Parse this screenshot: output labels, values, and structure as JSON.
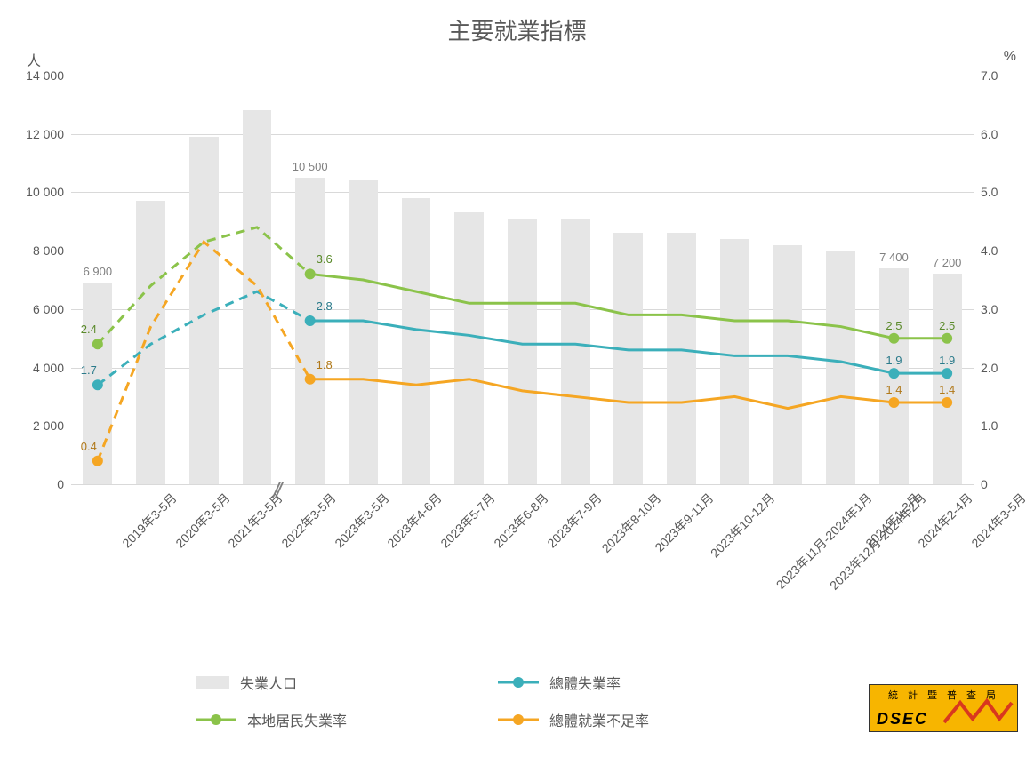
{
  "chart": {
    "title": "主要就業指標",
    "title_fontsize": 26,
    "title_color": "#595959",
    "background_color": "#ffffff",
    "grid_color": "#d9d9d9",
    "y_left": {
      "label": "人",
      "min": 0,
      "max": 14000,
      "step": 2000,
      "ticks": [
        "0",
        "2 000",
        "4 000",
        "6 000",
        "8 000",
        "10 000",
        "12 000",
        "14 000"
      ]
    },
    "y_right": {
      "label": "%",
      "min": 0,
      "max": 7.0,
      "step": 1.0,
      "ticks": [
        "0",
        "1.0",
        "2.0",
        "3.0",
        "4.0",
        "5.0",
        "6.0",
        "7.0"
      ]
    },
    "categories": [
      "2019年3-5月",
      "2020年3-5月",
      "2021年3-5月",
      "2022年3-5月",
      "2023年3-5月",
      "2023年4-6月",
      "2023年5-7月",
      "2023年6-8月",
      "2023年7-9月",
      "2023年8-10月",
      "2023年9-11月",
      "2023年10-12月",
      "2023年11月-2024年1月",
      "2023年12月-2024年2月",
      "2024年1-3月",
      "2024年2-4月",
      "2024年3-5月"
    ],
    "axis_break_after_index": 3,
    "bars": {
      "name": "失業人口",
      "color": "#e6e6e6",
      "width_ratio": 0.55,
      "values": [
        6900,
        9700,
        11900,
        12800,
        10500,
        10400,
        9800,
        9300,
        9100,
        9100,
        8600,
        8600,
        8400,
        8200,
        8000,
        7400,
        7200
      ],
      "labels": {
        "0": "6 900",
        "4": "10 500",
        "15": "7 400",
        "16": "7 200"
      }
    },
    "lines": [
      {
        "name": "總體失業率",
        "color": "#3bafba",
        "width": 3,
        "marker": "circle",
        "marker_size": 6,
        "marker_indices": [
          0,
          4,
          15,
          16
        ],
        "dash_until_index": 4,
        "values": [
          1.7,
          2.4,
          2.9,
          3.3,
          2.8,
          2.8,
          2.65,
          2.55,
          2.4,
          2.4,
          2.3,
          2.3,
          2.2,
          2.2,
          2.1,
          1.9,
          1.9
        ],
        "labels": {
          "0": "1.7",
          "4": "2.8",
          "15": "1.9",
          "16": "1.9"
        },
        "label_color": "#2a7a8a"
      },
      {
        "name": "本地居民失業率",
        "color": "#8bc34a",
        "width": 3,
        "marker": "circle",
        "marker_size": 6,
        "marker_indices": [
          0,
          4,
          15,
          16
        ],
        "dash_until_index": 4,
        "values": [
          2.4,
          3.4,
          4.15,
          4.4,
          3.6,
          3.5,
          3.3,
          3.1,
          3.1,
          3.1,
          2.9,
          2.9,
          2.8,
          2.8,
          2.7,
          2.5,
          2.5
        ],
        "labels": {
          "0": "2.4",
          "4": "3.6",
          "15": "2.5",
          "16": "2.5"
        },
        "label_color": "#5a8a2a"
      },
      {
        "name": "總體就業不足率",
        "color": "#f5a623",
        "width": 3,
        "marker": "circle",
        "marker_size": 6,
        "marker_indices": [
          0,
          4,
          15,
          16
        ],
        "dash_until_index": 4,
        "values": [
          0.4,
          2.7,
          4.15,
          3.4,
          1.8,
          1.8,
          1.7,
          1.8,
          1.6,
          1.5,
          1.4,
          1.4,
          1.5,
          1.3,
          1.5,
          1.4,
          1.4
        ],
        "labels": {
          "0": "0.4",
          "4": "1.8",
          "15": "1.4",
          "16": "1.4"
        },
        "label_color": "#b07818"
      }
    ],
    "legend": [
      {
        "type": "bar",
        "label": "失業人口",
        "color": "#e6e6e6"
      },
      {
        "type": "line",
        "label": "總體失業率",
        "color": "#3bafba"
      },
      {
        "type": "line",
        "label": "本地居民失業率",
        "color": "#8bc34a"
      },
      {
        "type": "line",
        "label": "總體就業不足率",
        "color": "#f5a623"
      }
    ],
    "logo": {
      "top_text": "統計暨普查局",
      "bottom_text": "DSEC",
      "bg": "#f7b500",
      "zig_color": "#d9381e"
    }
  }
}
